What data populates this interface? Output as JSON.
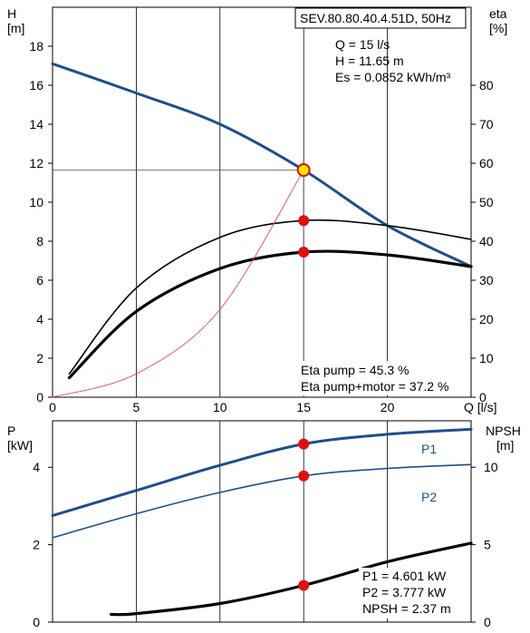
{
  "chart_data": [
    {
      "type": "line",
      "title": "SEV.80.80.40.4.51D, 50Hz",
      "operating_point_text": [
        "Q = 15 l/s",
        "H = 11.65 m",
        "Es = 0.0852 kWh/m³"
      ],
      "efficiency_text": [
        "Eta pump = 45.3 %",
        "Eta pump+motor = 37.2 %"
      ],
      "x_axis": {
        "label": "Q [l/s]",
        "ticks": [
          0,
          5,
          10,
          15,
          20
        ],
        "tick_labels": [
          "0",
          "5",
          "10",
          "15",
          "20",
          "Q [l/s]"
        ],
        "range": [
          0,
          25
        ]
      },
      "y_left": {
        "label": [
          "H",
          "[m]"
        ],
        "ticks": [
          0,
          2,
          4,
          6,
          8,
          10,
          12,
          14,
          16,
          18
        ],
        "range": [
          0,
          20
        ]
      },
      "y_right": {
        "label": [
          "eta",
          "[%]"
        ],
        "ticks": [
          0,
          10,
          20,
          30,
          40,
          50,
          60,
          70,
          80
        ],
        "range": [
          0,
          100
        ]
      },
      "grid": true,
      "series": [
        {
          "axis": "left",
          "color": "#1f4e8c",
          "x": [
            0,
            5,
            10,
            15,
            20,
            25
          ],
          "y": [
            17.1,
            15.6,
            14.0,
            11.65,
            8.8,
            6.7
          ]
        },
        {
          "axis": "right",
          "color": "#000000",
          "x": [
            1,
            5,
            10,
            15,
            20,
            25
          ],
          "y": [
            6,
            28,
            41,
            45.3,
            44,
            40.5
          ]
        },
        {
          "axis": "right",
          "color": "#000000",
          "x": [
            1,
            5,
            10,
            15,
            20,
            25
          ],
          "y": [
            5,
            22,
            33,
            37.2,
            36.5,
            33.5
          ]
        },
        {
          "axis": "left",
          "color": "#e05050",
          "x": [
            0,
            5,
            10,
            15
          ],
          "y": [
            0,
            1.2,
            4.5,
            11.65
          ]
        }
      ],
      "markers": [
        {
          "axis": "left",
          "x": 15,
          "y": 11.65,
          "style": "yellow"
        },
        {
          "axis": "right",
          "x": 15,
          "y": 45.3,
          "style": "red"
        },
        {
          "axis": "right",
          "x": 15,
          "y": 37.2,
          "style": "red"
        }
      ],
      "operating_point_q": 15,
      "operating_point_h": 11.65
    },
    {
      "type": "line",
      "x_axis": {
        "ticks": [
          0,
          5,
          10,
          15,
          20
        ],
        "range": [
          0,
          25
        ]
      },
      "y_left": {
        "label": [
          "P",
          "[kW]"
        ],
        "ticks": [
          0,
          2,
          4
        ],
        "range": [
          0,
          5.2
        ]
      },
      "y_right": {
        "label": [
          "NPSH",
          "[m]"
        ],
        "ticks": [
          0,
          5,
          10
        ],
        "range": [
          0,
          13
        ]
      },
      "grid": true,
      "values_text": [
        "P1 = 4.601 kW",
        "P2 = 3.777 kW",
        "NPSH = 2.37 m"
      ],
      "series": [
        {
          "name": "P1",
          "axis": "left",
          "color": "#1f4e8c",
          "x": [
            0,
            5,
            10,
            15,
            20,
            25
          ],
          "y": [
            2.75,
            3.4,
            4.05,
            4.601,
            4.85,
            4.98
          ]
        },
        {
          "name": "P2",
          "axis": "left",
          "color": "#1f4e8c",
          "x": [
            0,
            5,
            10,
            15,
            20,
            25
          ],
          "y": [
            2.18,
            2.8,
            3.35,
            3.777,
            3.97,
            4.07
          ]
        },
        {
          "axis": "right",
          "color": "#000000",
          "x": [
            3.5,
            5,
            10,
            15,
            20,
            25
          ],
          "y": [
            0.5,
            0.55,
            1.2,
            2.37,
            3.9,
            5.1
          ]
        }
      ],
      "markers": [
        {
          "axis": "left",
          "x": 15,
          "y": 4.601,
          "style": "red"
        },
        {
          "axis": "left",
          "x": 15,
          "y": 3.777,
          "style": "red"
        },
        {
          "axis": "right",
          "x": 15,
          "y": 2.37,
          "style": "red"
        }
      ]
    }
  ]
}
